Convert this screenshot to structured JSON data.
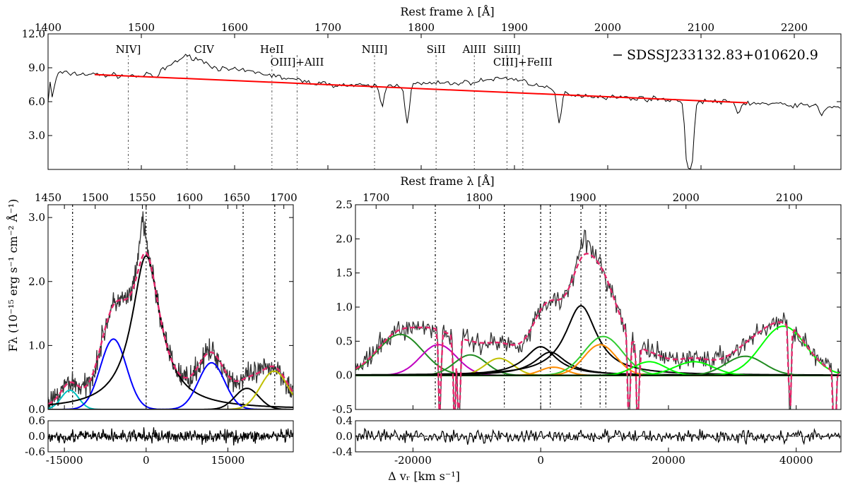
{
  "figure": {
    "ylabel": "Fλ (10⁻¹⁵ erg s⁻¹ cm⁻² Å⁻¹)",
    "xlabel": "Δ vᵣ [km s⁻¹]",
    "object_name": "SDSSJ233132.83+010620.9"
  },
  "chart_data": [
    {
      "id": "top",
      "type": "line",
      "title": "Rest frame λ [Å]",
      "xlim": [
        1400,
        2250
      ],
      "ylim": [
        0,
        12
      ],
      "xticks": [
        1400,
        1500,
        1600,
        1700,
        1800,
        1900,
        2000,
        2100,
        2200
      ],
      "yticks": [
        3.0,
        6.0,
        9.0,
        12.0
      ],
      "ytick_labels": [
        "3.0",
        "6.0",
        "9.0",
        "12.0"
      ],
      "legend": {
        "position": "top-right",
        "label": "SDSSJ233132.83+010620.9"
      },
      "continuum": {
        "color": "#ff0000",
        "x": [
          1450,
          2150
        ],
        "y": [
          8.4,
          5.9
        ]
      },
      "lines": [
        {
          "label": "NIV]",
          "x": 1486
        },
        {
          "label": "CIV",
          "x": 1549
        },
        {
          "label": "HeII",
          "x": 1640
        },
        {
          "label": "OIII]+AlII",
          "x": 1667
        },
        {
          "label": "NIII]",
          "x": 1750
        },
        {
          "label": "SiII",
          "x": 1816
        },
        {
          "label": "AlIII",
          "x": 1857
        },
        {
          "label": "SiIII]",
          "x": 1892
        },
        {
          "label": "CIII]+FeIII",
          "x": 1909
        }
      ],
      "absorption": [
        {
          "x": 1516,
          "depth": 0.5
        },
        {
          "x": 1758,
          "depth": 1.8
        },
        {
          "x": 1785,
          "depth": 3.4
        },
        {
          "x": 1948,
          "depth": 2.8
        },
        {
          "x": 2085,
          "depth": 5.4
        },
        {
          "x": 2090,
          "depth": 5.8
        },
        {
          "x": 2140,
          "depth": 1.0
        },
        {
          "x": 2230,
          "depth": 0.8
        }
      ]
    },
    {
      "id": "civ",
      "type": "line",
      "xlabel": "",
      "xlim": [
        -18000,
        27000
      ],
      "ylim": [
        0,
        3.2
      ],
      "xticks": [
        -15000,
        0,
        15000
      ],
      "yticks": [
        0.0,
        1.0,
        2.0,
        3.0
      ],
      "ytick_labels": [
        "0.0",
        "1.0",
        "2.0",
        "3.0"
      ],
      "top_axis": {
        "lim": [
          1450,
          1710
        ],
        "ticks": [
          1450,
          1500,
          1550,
          1600,
          1650,
          1700
        ]
      },
      "vlines_kms": [
        -13500,
        0,
        17800,
        23600
      ],
      "components": [
        {
          "name": "NIV]",
          "color": "#00c0c0",
          "center": -14000,
          "amp": 0.3,
          "sigma": 1600,
          "shape": "gauss"
        },
        {
          "name": "CIV blue",
          "color": "#0000ff",
          "center": -6000,
          "amp": 1.1,
          "sigma": 2400,
          "shape": "gauss"
        },
        {
          "name": "CIV",
          "color": "#000000",
          "center": 0,
          "amp": 2.4,
          "gamma": 3200,
          "shape": "lorentz"
        },
        {
          "name": "CIV red",
          "color": "#0000ff",
          "center": 12000,
          "amp": 0.73,
          "sigma": 2400,
          "shape": "gauss"
        },
        {
          "name": "HeII",
          "color": "#000000",
          "center": 18500,
          "amp": 0.33,
          "sigma": 2200,
          "shape": "gauss"
        },
        {
          "name": "OIII]+AlII",
          "color": "#c0c000",
          "center": 23500,
          "amp": 0.6,
          "sigma": 2500,
          "shape": "gauss"
        }
      ]
    },
    {
      "id": "ciii",
      "type": "line",
      "xlim": [
        -29000,
        47000
      ],
      "ylim": [
        -0.5,
        2.5
      ],
      "xticks": [
        -20000,
        0,
        20000,
        40000
      ],
      "yticks": [
        -0.5,
        0.0,
        0.5,
        1.0,
        1.5,
        2.0,
        2.5
      ],
      "ytick_labels": [
        "-0.5",
        "0.0",
        "0.5",
        "1.0",
        "1.5",
        "2.0",
        "2.5"
      ],
      "top_axis": {
        "lim": [
          1680,
          2150
        ],
        "ticks": [
          1700,
          1800,
          1900,
          2000,
          2100
        ]
      },
      "vlines_kms": [
        -16500,
        -5700,
        0,
        1500,
        6300,
        9300,
        10200
      ],
      "components": [
        {
          "name": "c1",
          "color": "#228b22",
          "center": -22000,
          "amp": 0.6,
          "sigma": 3500,
          "shape": "gauss"
        },
        {
          "name": "c2",
          "color": "#c000c0",
          "center": -16000,
          "amp": 0.45,
          "sigma": 2800,
          "shape": "gauss"
        },
        {
          "name": "c3",
          "color": "#228b22",
          "center": -11000,
          "amp": 0.3,
          "sigma": 2500,
          "shape": "gauss"
        },
        {
          "name": "c4",
          "color": "#c0c000",
          "center": -6500,
          "amp": 0.25,
          "sigma": 2200,
          "shape": "gauss"
        },
        {
          "name": "c5",
          "color": "#000000",
          "center": 0,
          "amp": 0.42,
          "gamma": 3000,
          "shape": "lorentz"
        },
        {
          "name": "c6",
          "color": "#000000",
          "center": 1500,
          "amp": 0.34,
          "gamma": 3000,
          "shape": "lorentz"
        },
        {
          "name": "c7",
          "color": "#000000",
          "center": 6300,
          "amp": 1.02,
          "gamma": 3000,
          "shape": "lorentz"
        },
        {
          "name": "c8",
          "color": "#ff8c00",
          "center": 2000,
          "amp": 0.12,
          "sigma": 2000,
          "shape": "gauss"
        },
        {
          "name": "c9",
          "color": "#32cd32",
          "center": 9800,
          "amp": 0.57,
          "sigma": 3000,
          "shape": "gauss"
        },
        {
          "name": "c10",
          "color": "#ff8c00",
          "center": 9300,
          "amp": 0.45,
          "sigma": 2500,
          "shape": "gauss"
        },
        {
          "name": "c11",
          "color": "#00ff00",
          "center": 17000,
          "amp": 0.2,
          "sigma": 2500,
          "shape": "gauss"
        },
        {
          "name": "c12",
          "color": "#00ff00",
          "center": 24000,
          "amp": 0.2,
          "sigma": 3000,
          "shape": "gauss"
        },
        {
          "name": "c13",
          "color": "#228b22",
          "center": 32000,
          "amp": 0.28,
          "sigma": 3000,
          "shape": "gauss"
        },
        {
          "name": "c14",
          "color": "#00ff00",
          "center": 38000,
          "amp": 0.72,
          "sigma": 3500,
          "shape": "gauss"
        }
      ],
      "absorption_kms": [
        -15800,
        -13500,
        -12800,
        13800,
        15200,
        39000,
        46000
      ]
    },
    {
      "id": "civ_resid",
      "type": "line",
      "xlim": [
        -18000,
        27000
      ],
      "ylim": [
        -0.6,
        0.6
      ],
      "yticks": [
        -0.6,
        0.0,
        0.6
      ],
      "ytick_labels": [
        "-0.6",
        "0.0",
        "0.6"
      ]
    },
    {
      "id": "ciii_resid",
      "type": "line",
      "xlim": [
        -29000,
        47000
      ],
      "ylim": [
        -0.4,
        0.4
      ],
      "yticks": [
        -0.4,
        0.0,
        0.4
      ],
      "ytick_labels": [
        "-0.4",
        "0.0",
        "0.4"
      ]
    }
  ]
}
